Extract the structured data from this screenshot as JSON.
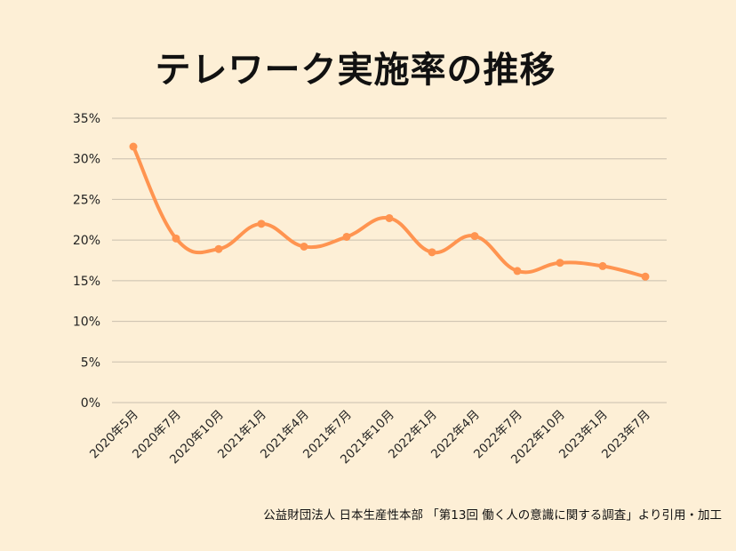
{
  "chart_data": {
    "type": "line",
    "title": "テレワーク実施率の推移",
    "xlabel": "",
    "ylabel": "",
    "categories": [
      "2020年5月",
      "2020年7月",
      "2020年10月",
      "2021年1月",
      "2021年4月",
      "2021年7月",
      "2021年10月",
      "2022年1月",
      "2022年4月",
      "2022年7月",
      "2022年10月",
      "2023年1月",
      "2023年7月"
    ],
    "values": [
      31.5,
      20.2,
      18.9,
      22.0,
      19.2,
      20.4,
      22.7,
      18.5,
      20.5,
      16.2,
      17.2,
      16.8,
      15.5
    ],
    "ylim": [
      0,
      35
    ],
    "yticks": [
      "0%",
      "5%",
      "10%",
      "15%",
      "20%",
      "25%",
      "30%",
      "35%"
    ],
    "grid": true,
    "smooth": true,
    "line_color": "#ff9450",
    "grid_color": "#c9bfae",
    "background": "#fdefd6"
  },
  "source": "公益財団法人 日本生産性本部 「第13回 働く人の意識に関する調査」より引用・加工"
}
